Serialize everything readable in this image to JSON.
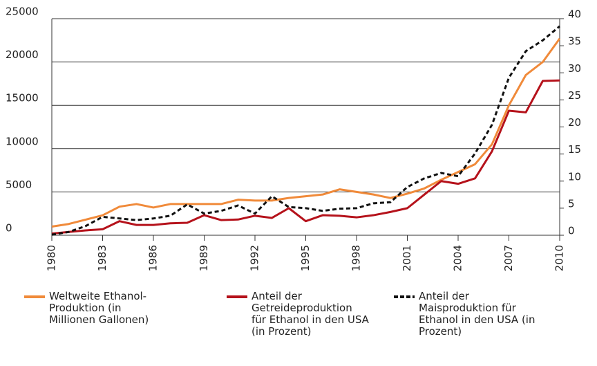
{
  "chart_data": {
    "type": "line",
    "x": [
      1980,
      1981,
      1982,
      1983,
      1984,
      1985,
      1986,
      1987,
      1988,
      1989,
      1990,
      1991,
      1992,
      1993,
      1994,
      1995,
      1996,
      1997,
      1998,
      1999,
      2000,
      2001,
      2002,
      2003,
      2004,
      2005,
      2006,
      2007,
      2008,
      2009,
      2010
    ],
    "xlim": [
      1980,
      2010
    ],
    "xticks": [
      1980,
      1983,
      1986,
      1989,
      1992,
      1995,
      1998,
      2001,
      2004,
      2007,
      2010
    ],
    "ylim": [
      0,
      25000
    ],
    "yticks": [
      0,
      5000,
      10000,
      15000,
      20000,
      25000
    ],
    "y2lim": [
      0,
      40
    ],
    "y2ticks": [
      0,
      5,
      10,
      15,
      20,
      25,
      30,
      35,
      40
    ],
    "grid": true,
    "series": [
      {
        "name": "Weltweite Ethanol-Produktion (in Millionen Gallonen)",
        "color": "#f08a3a",
        "style": "solid",
        "values": [
          1000,
          1300,
          1800,
          2300,
          3300,
          3600,
          3200,
          3600,
          3600,
          3600,
          3600,
          4100,
          4000,
          4000,
          4300,
          4500,
          4700,
          5300,
          5000,
          4700,
          4300,
          4800,
          5400,
          6400,
          7300,
          8200,
          10500,
          15000,
          18500,
          20000,
          22700
        ]
      },
      {
        "name": "Anteil der Getreideproduktion für Ethanol in den USA (in Prozent)",
        "color": "#b5121b",
        "style": "solid",
        "axis": "y2",
        "values": [
          0.3,
          0.6,
          0.9,
          1.1,
          2.6,
          1.9,
          1.9,
          2.2,
          2.3,
          3.7,
          2.8,
          2.9,
          3.6,
          3.2,
          5.0,
          2.6,
          3.7,
          3.6,
          3.3,
          3.7,
          4.3,
          5.0,
          7.5,
          10.0,
          9.5,
          10.5,
          15.5,
          23.0,
          22.7,
          28.5,
          28.6
        ]
      },
      {
        "name": "Anteil der Maisproduktion für Ethanol in den USA (in Prozent)",
        "color": "#111111",
        "style": "dashed",
        "axis": "y2",
        "values": [
          0.1,
          0.6,
          1.7,
          3.4,
          3.1,
          2.8,
          3.1,
          3.6,
          5.7,
          4.0,
          4.5,
          5.5,
          4.0,
          7.2,
          5.2,
          5.0,
          4.5,
          4.9,
          5.0,
          5.9,
          6.1,
          8.9,
          10.5,
          11.5,
          10.9,
          15.1,
          20.4,
          29.1,
          34.0,
          36.0,
          38.6
        ]
      }
    ]
  }
}
